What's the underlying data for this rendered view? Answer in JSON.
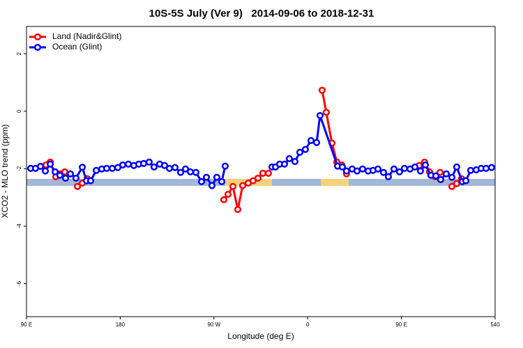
{
  "chart_data": {
    "type": "line",
    "title": "10S-5S July (Ver 9)   2014-09-06 to 2018-12-31",
    "x_label": "Longitude (deg E)",
    "y_label": "XCO2 - MLO trend (ppm)",
    "xlim": [
      90,
      540
    ],
    "ylim": [
      -7.15,
      2.95
    ],
    "xticks": [
      {
        "value": 90,
        "label": "90 E"
      },
      180,
      {
        "value": 270,
        "label": "90 W"
      },
      {
        "value": 360,
        "label": "0"
      },
      {
        "value": 450,
        "label": "90 E"
      },
      540
    ],
    "yticks": [
      2,
      0,
      -2,
      -4,
      -6
    ],
    "legend": "top-left",
    "series": [
      {
        "name": "Land (Nadir&Glint)",
        "color": "#ff0000",
        "x": [
          108.7,
          112.8,
          118.1,
          122.1,
          126.8,
          133,
          138.9,
          143.6,
          148.3,
          200,
          279.5,
          283.5,
          288.2,
          292.9,
          297.6,
          302.9,
          307.6,
          312.3,
          317.0,
          322.3,
          350,
          373.9,
          377.9,
          383.3,
          388.0,
          392.7,
          397.3,
          430,
          467.0,
          472.3,
          477.0,
          482.4,
          487.1,
          493,
          498.5,
          503.1,
          507.8
        ],
        "values": [
          -1.87,
          -1.77,
          -2.28,
          -2.18,
          -2.11,
          null,
          -2.62,
          -2.5,
          -2.35,
          null,
          -3.08,
          -2.89,
          -2.62,
          -3.42,
          -2.59,
          -2.5,
          -2.42,
          -2.33,
          -2.16,
          -2.16,
          null,
          0.73,
          -0.04,
          -1.11,
          -1.77,
          -1.87,
          -2.18,
          null,
          -1.89,
          -1.77,
          -2.11,
          -2.28,
          -2.13,
          null,
          -2.62,
          -2.52,
          -2.35
        ]
      },
      {
        "name": "Ocean (Glint)",
        "color": "#0000ff",
        "x": [
          94.0,
          98.7,
          103.4,
          108.1,
          112.8,
          117.5,
          122.1,
          127.5,
          132.2,
          137.5,
          143.6,
          147.6,
          151.6,
          157.0,
          162.3,
          167.0,
          172.4,
          177.7,
          182.4,
          187.8,
          193.1,
          197.8,
          202.5,
          207.8,
          212.5,
          217.9,
          222.6,
          227.3,
          232.6,
          238.0,
          242.7,
          247.4,
          252.7,
          258.1,
          262.8,
          268.1,
          272.8,
          277.5,
          280.8,
          300,
          325.7,
          329.1,
          333.1,
          337.8,
          342.4,
          347.8,
          352.5,
          357.8,
          363.2,
          368.6,
          371.9,
          388.7,
          393.3,
          397.3,
          402.7,
          407.4,
          412.7,
          418.1,
          422.8,
          427.5,
          432.8,
          437.5,
          442.9,
          448.2,
          452.9,
          458.3,
          463.0,
          468.3,
          473.0,
          478.4,
          483.1,
          487.7,
          493.1,
          498.5,
          503.1,
          508.5,
          511.9,
          516.5,
          521.9,
          526.6,
          531.3,
          536.6
        ],
        "values": [
          -1.99,
          -1.99,
          -1.92,
          -2.08,
          -1.84,
          -2.11,
          -2.23,
          -2.33,
          -2.18,
          -2.33,
          -1.95,
          -2.42,
          -2.42,
          -2.06,
          -2.01,
          -1.99,
          -1.99,
          -1.96,
          -1.87,
          -1.84,
          -1.89,
          -1.84,
          -1.82,
          -1.77,
          -1.94,
          -1.84,
          -1.89,
          -1.99,
          -1.96,
          -2.13,
          -2.01,
          -2.11,
          -2.13,
          -2.45,
          -2.3,
          -2.59,
          -2.3,
          -2.45,
          -1.91,
          null,
          -1.94,
          -1.94,
          -1.84,
          -1.84,
          -1.65,
          -1.75,
          -1.43,
          -1.33,
          -1.02,
          -1.09,
          -0.15,
          -1.91,
          -1.94,
          -2.08,
          -2.01,
          -2.08,
          -2.01,
          -2.08,
          -2.06,
          -2.01,
          -2.13,
          -2.28,
          -2.01,
          -2.11,
          -1.99,
          -2.01,
          -1.94,
          -2.08,
          -1.87,
          -2.23,
          -2.25,
          -2.38,
          -2.18,
          -2.3,
          -1.94,
          -2.45,
          -2.42,
          -2.06,
          -2.04,
          -1.99,
          -1.99,
          -1.96
        ]
      }
    ]
  }
}
